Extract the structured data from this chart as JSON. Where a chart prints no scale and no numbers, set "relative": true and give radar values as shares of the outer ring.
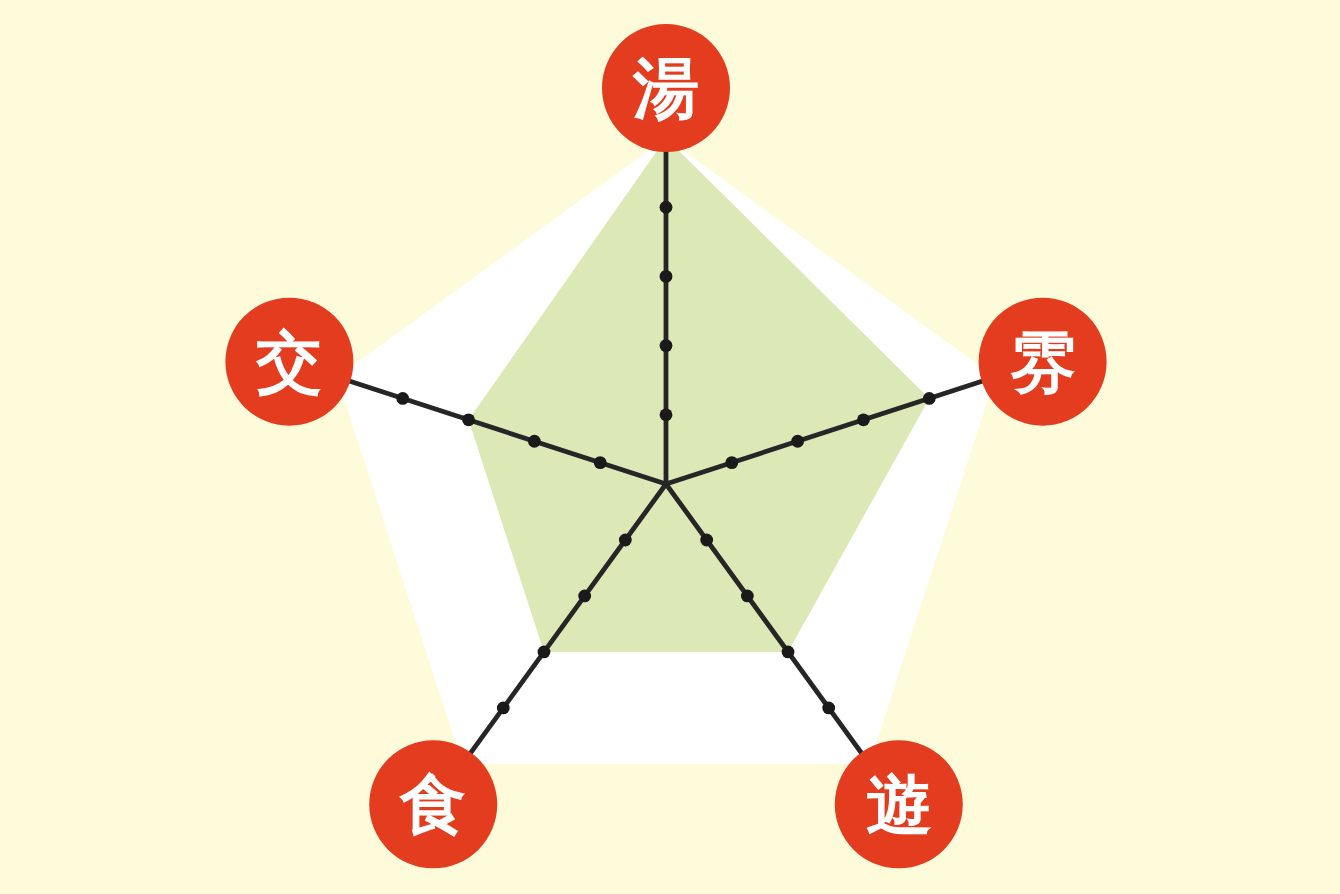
{
  "chart_data": {
    "type": "radar",
    "relative": true,
    "categories": [
      "湯",
      "雰",
      "遊",
      "食",
      "交"
    ],
    "series": [
      {
        "color": "#dde8b7",
        "values": [
          1,
          0.8,
          0.6,
          0.6,
          0.6
        ]
      }
    ]
  }
}
